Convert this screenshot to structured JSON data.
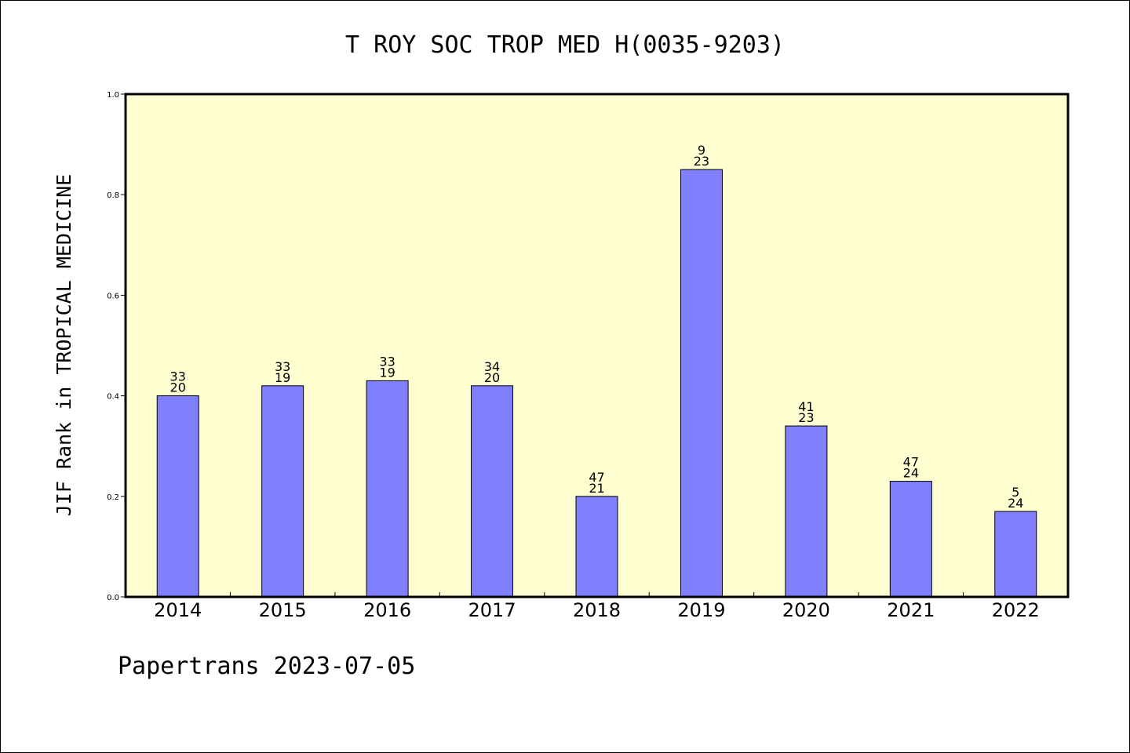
{
  "chart_data": {
    "type": "bar",
    "title": "T ROY SOC TROP MED H(0035-9203)",
    "xlabel": "",
    "ylabel": "JIF Rank in TROPICAL MEDICINE",
    "ylim": [
      0,
      1.0
    ],
    "yticks": [
      "0.0",
      "0.2",
      "0.4",
      "0.6",
      "0.8",
      "1.0"
    ],
    "categories": [
      "2014",
      "2015",
      "2016",
      "2017",
      "2018",
      "2019",
      "2020",
      "2021",
      "2022"
    ],
    "values": [
      0.4,
      0.42,
      0.43,
      0.42,
      0.2,
      0.85,
      0.34,
      0.23,
      0.17
    ],
    "labels_top": [
      "33",
      "33",
      "33",
      "34",
      "47",
      "9",
      "41",
      "47",
      "5"
    ],
    "labels_bottom": [
      "20",
      "19",
      "19",
      "20",
      "21",
      "23",
      "23",
      "24",
      "24"
    ],
    "grid": false,
    "colors": {
      "bar": "#8080ff",
      "plot_background": "#ffffd2",
      "axis": "#000000"
    }
  },
  "footer": "Papertrans 2023-07-05"
}
